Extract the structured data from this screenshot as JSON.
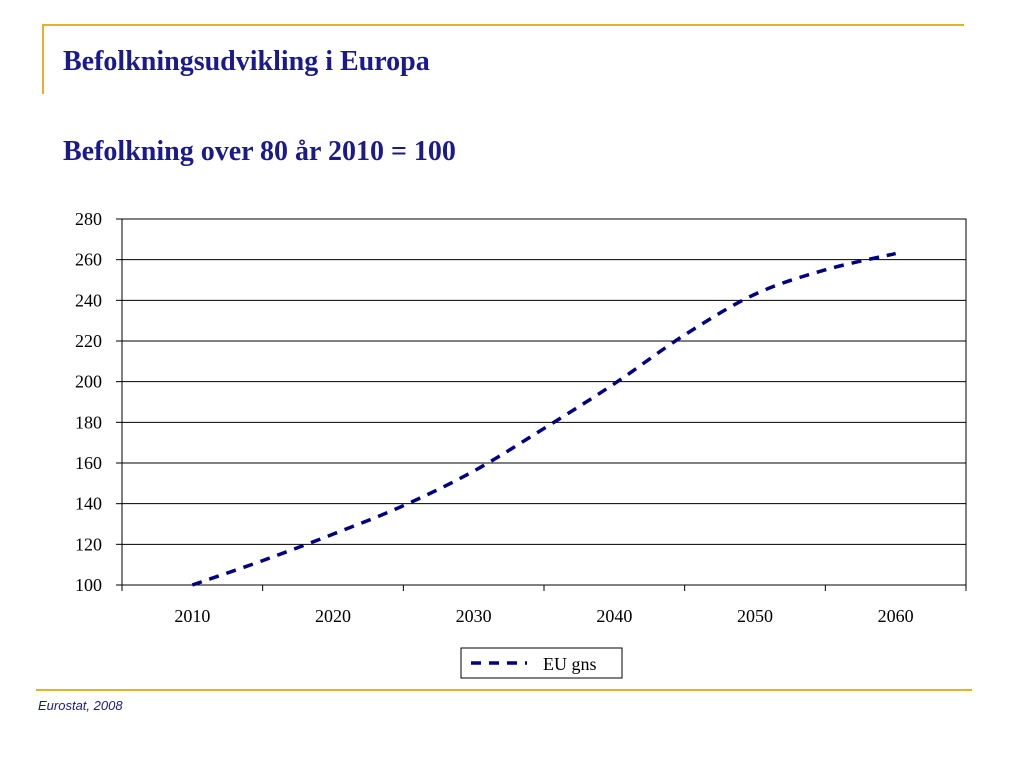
{
  "slide": {
    "title": "Befolkningsudvikling i Europa",
    "subtitle": "Befolkning over 80 år 2010 = 100",
    "source": "Eurostat, 2008"
  },
  "colors": {
    "accent_rule": "#e8b030",
    "title_text": "#1a1a8c",
    "series_line": "#000080",
    "gridline": "#000000"
  },
  "chart_data": {
    "type": "line",
    "title": "",
    "xlabel": "",
    "ylabel": "",
    "ylim": [
      100,
      280
    ],
    "xlim": [
      2005,
      2065
    ],
    "yticks": [
      "100",
      "120",
      "140",
      "160",
      "180",
      "200",
      "220",
      "240",
      "260",
      "280"
    ],
    "xticks": [
      "2010",
      "2020",
      "2030",
      "2040",
      "2050",
      "2060"
    ],
    "grid": "horizontal",
    "legend_position": "bottom-center",
    "series": [
      {
        "name": "EU gns",
        "line_style": "dashed",
        "x": [
          2010,
          2015,
          2020,
          2025,
          2030,
          2035,
          2040,
          2045,
          2050,
          2055,
          2060
        ],
        "y": [
          100,
          112,
          125,
          139,
          156,
          177,
          199,
          223,
          243,
          255,
          263
        ]
      }
    ]
  }
}
